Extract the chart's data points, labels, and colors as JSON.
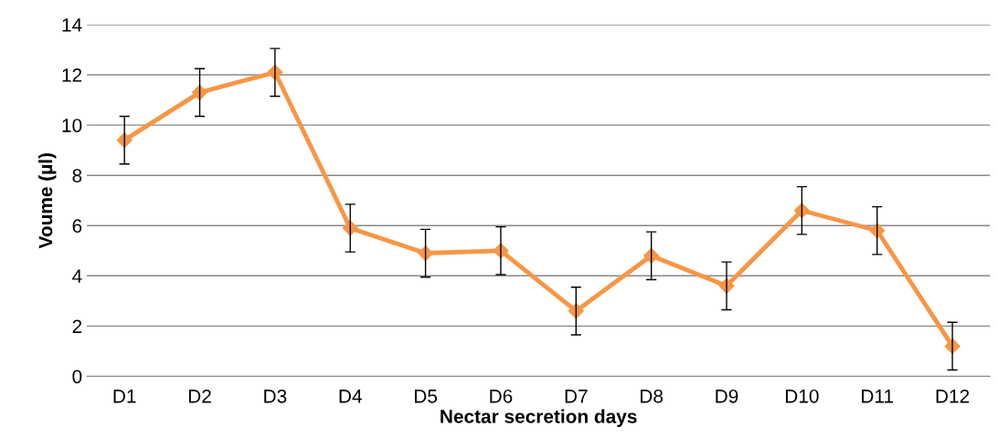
{
  "chart_data": {
    "type": "line",
    "xlabel": "Nectar secretion days",
    "ylabel": "Voume (µl)",
    "categories": [
      "D1",
      "D2",
      "D3",
      "D4",
      "D5",
      "D6",
      "D7",
      "D8",
      "D9",
      "D10",
      "D11",
      "D12"
    ],
    "series": [
      {
        "color": "#f79646",
        "values": [
          9.4,
          11.3,
          12.1,
          5.9,
          4.9,
          5.0,
          2.6,
          4.8,
          3.6,
          6.6,
          5.8,
          1.2
        ],
        "errors": [
          0.95,
          0.95,
          0.95,
          0.95,
          0.95,
          0.95,
          0.95,
          0.95,
          0.95,
          0.95,
          0.95,
          0.95
        ]
      }
    ],
    "ylim": [
      0,
      14
    ],
    "yticks": [
      0,
      2,
      4,
      6,
      8,
      10,
      12,
      14
    ],
    "grid": "y",
    "marker": "diamond",
    "line_style": "solid",
    "legend": false
  }
}
